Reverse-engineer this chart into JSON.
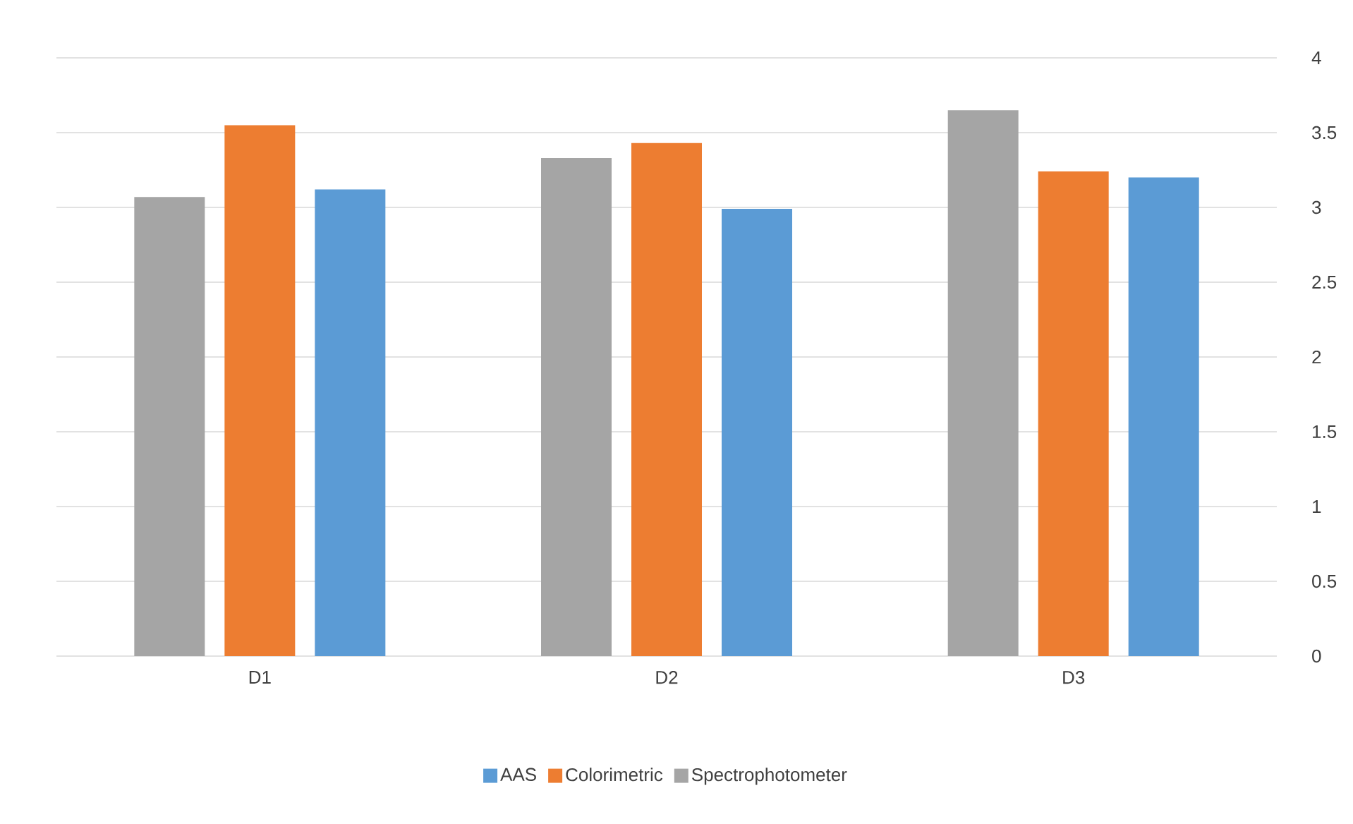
{
  "chart_data": {
    "type": "bar",
    "categories": [
      "D1",
      "D2",
      "D3"
    ],
    "series": [
      {
        "name": "Spectrophotometer",
        "color": "#a5a5a5",
        "values": [
          3.07,
          3.33,
          3.65
        ]
      },
      {
        "name": "Colorimetric",
        "color": "#ed7d31",
        "values": [
          3.55,
          3.43,
          3.24
        ]
      },
      {
        "name": "AAS",
        "color": "#5b9bd5",
        "values": [
          3.12,
          2.99,
          3.2
        ]
      }
    ],
    "ylim": [
      0,
      4
    ],
    "yticks": [
      0,
      0.5,
      1,
      1.5,
      2,
      2.5,
      3,
      3.5,
      4
    ],
    "grid": "y",
    "legend": "bottom"
  }
}
